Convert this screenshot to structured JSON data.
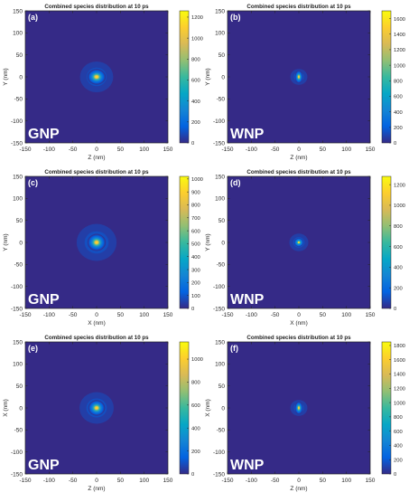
{
  "chart_data": [
    {
      "type": "heatmap",
      "panel_label": "(a)",
      "title": "Combined species distribution at 10 ps",
      "xlabel": "Z (nm)",
      "ylabel": "Y (nm)",
      "xlim": [
        -150,
        150
      ],
      "ylim": [
        -150,
        150
      ],
      "x_ticks": [
        "-150",
        "-100",
        "-50",
        "0",
        "50",
        "100",
        "150"
      ],
      "y_ticks": [
        "150",
        "100",
        "50",
        "0",
        "-50",
        "-100",
        "-150"
      ],
      "colorbar_ticks": [
        "0",
        "200",
        "400",
        "600",
        "800",
        "1000",
        "1200"
      ],
      "colorbar_max": 1260,
      "particle_label": "GNP",
      "peak_center": [
        0,
        0
      ],
      "peak_value": 1260,
      "spread_x_nm": 12,
      "spread_y_nm": 11,
      "halo_spread_nm": 35,
      "ring": false
    },
    {
      "type": "heatmap",
      "panel_label": "(b)",
      "title": "Combined species distribution at 10 ps",
      "xlabel": "Z (nm)",
      "ylabel": "Y (nm)",
      "xlim": [
        -150,
        150
      ],
      "ylim": [
        -150,
        150
      ],
      "x_ticks": [
        "-150",
        "-100",
        "-50",
        "0",
        "50",
        "100",
        "150"
      ],
      "y_ticks": [
        "150",
        "100",
        "50",
        "0",
        "-50",
        "-100",
        "-150"
      ],
      "colorbar_ticks": [
        "0",
        "200",
        "400",
        "600",
        "800",
        "1000",
        "1200",
        "1400",
        "1600"
      ],
      "colorbar_max": 1700,
      "particle_label": "WNP",
      "peak_center": [
        0,
        0
      ],
      "peak_value": 1700,
      "spread_x_nm": 5,
      "spread_y_nm": 9,
      "halo_spread_nm": 18,
      "ring": false
    },
    {
      "type": "heatmap",
      "panel_label": "(c)",
      "title": "Combined species distribution at 10 ps",
      "xlabel": "X (nm)",
      "ylabel": "Y (nm)",
      "xlim": [
        -150,
        150
      ],
      "ylim": [
        -150,
        150
      ],
      "x_ticks": [
        "-150",
        "-100",
        "-50",
        "0",
        "50",
        "100",
        "150"
      ],
      "y_ticks": [
        "150",
        "100",
        "50",
        "0",
        "-50",
        "-100",
        "-150"
      ],
      "colorbar_ticks": [
        "0",
        "100",
        "200",
        "300",
        "400",
        "500",
        "600",
        "700",
        "800",
        "900",
        "1000"
      ],
      "colorbar_max": 1020,
      "particle_label": "GNP",
      "peak_center": [
        0,
        0
      ],
      "peak_value": 1020,
      "spread_x_nm": 12,
      "spread_y_nm": 12,
      "halo_spread_nm": 42,
      "ring": false
    },
    {
      "type": "heatmap",
      "panel_label": "(d)",
      "title": "Combined species distribution at 10 ps",
      "xlabel": "X (nm)",
      "ylabel": "Y (nm)",
      "xlim": [
        -150,
        150
      ],
      "ylim": [
        -150,
        150
      ],
      "x_ticks": [
        "-150",
        "-100",
        "-50",
        "0",
        "50",
        "100",
        "150"
      ],
      "y_ticks": [
        "150",
        "100",
        "50",
        "0",
        "-50",
        "-100",
        "-150"
      ],
      "colorbar_ticks": [
        "0",
        "200",
        "400",
        "600",
        "800",
        "1000",
        "1200"
      ],
      "colorbar_max": 1280,
      "particle_label": "WNP",
      "peak_center": [
        0,
        0
      ],
      "peak_value": 1280,
      "spread_x_nm": 6,
      "spread_y_nm": 6,
      "halo_spread_nm": 20,
      "ring": true
    },
    {
      "type": "heatmap",
      "panel_label": "(e)",
      "title": "Combined species distribution at 10 ps",
      "xlabel": "Z (nm)",
      "ylabel": "X (nm)",
      "xlim": [
        -150,
        150
      ],
      "ylim": [
        -150,
        150
      ],
      "x_ticks": [
        "-150",
        "-100",
        "-50",
        "0",
        "50",
        "100",
        "150"
      ],
      "y_ticks": [
        "150",
        "100",
        "50",
        "0",
        "-50",
        "-100",
        "-150"
      ],
      "colorbar_ticks": [
        "0",
        "200",
        "400",
        "600",
        "800",
        "1000"
      ],
      "colorbar_max": 1150,
      "particle_label": "GNP",
      "peak_center": [
        0,
        0
      ],
      "peak_value": 1150,
      "spread_x_nm": 11,
      "spread_y_nm": 11,
      "halo_spread_nm": 36,
      "ring": false
    },
    {
      "type": "heatmap",
      "panel_label": "(f)",
      "title": "Combined species distribution at 10 ps",
      "xlabel": "Z (nm)",
      "ylabel": "X (nm)",
      "xlim": [
        -150,
        150
      ],
      "ylim": [
        -150,
        150
      ],
      "x_ticks": [
        "-150",
        "-100",
        "-50",
        "0",
        "50",
        "100",
        "150"
      ],
      "y_ticks": [
        "150",
        "100",
        "50",
        "0",
        "-50",
        "-100",
        "-150"
      ],
      "colorbar_ticks": [
        "0",
        "200",
        "400",
        "600",
        "800",
        "1000",
        "1200",
        "1400",
        "1600",
        "1800"
      ],
      "colorbar_max": 1850,
      "particle_label": "WNP",
      "peak_center": [
        0,
        0
      ],
      "peak_value": 1850,
      "spread_x_nm": 5,
      "spread_y_nm": 9,
      "halo_spread_nm": 18,
      "ring": false
    }
  ],
  "colormap": [
    "#352a87",
    "#0363e1",
    "#1485d4",
    "#06a7c6",
    "#38b99e",
    "#92bf73",
    "#d9ba56",
    "#fcce2e",
    "#f9fb0e"
  ]
}
